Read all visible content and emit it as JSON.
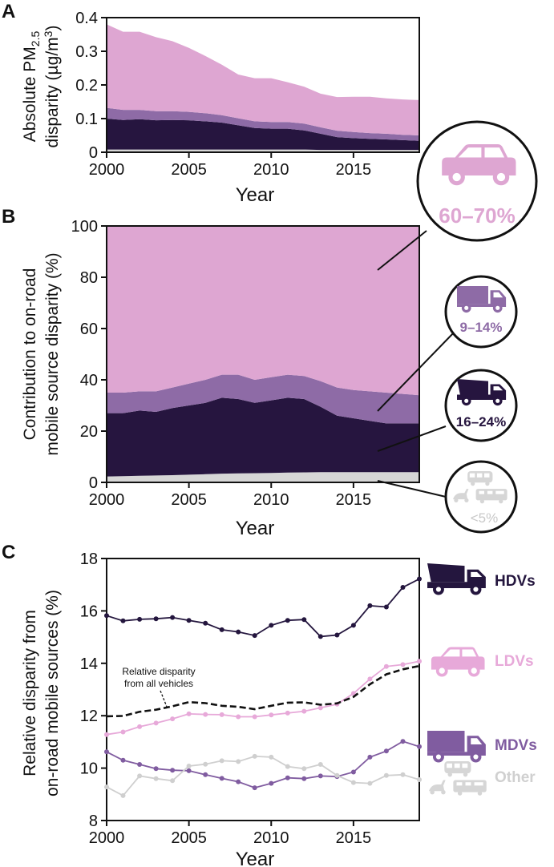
{
  "colors": {
    "ldv": "#dea6d2",
    "mdv": "#8e6ba6",
    "hdv": "#26153f",
    "other": "#d6d6d6",
    "ldv_line": "#e7a9d9",
    "mdv_line": "#805ca0",
    "hdv_line": "#24163e",
    "other_line": "#cfcfcf",
    "axis": "#111111"
  },
  "chart_data": [
    {
      "panel": "A",
      "type": "area",
      "stacked": true,
      "title": "",
      "xlabel": "Year",
      "ylabel_line1": "Absolute PM",
      "ylabel_sub": "2.5",
      "ylabel_line2": "disparity (µg/m",
      "ylabel_sup": "3",
      "ylabel_close": ")",
      "xlim": [
        2000,
        2019
      ],
      "ylim": [
        0,
        0.4
      ],
      "xticks": [
        2000,
        2005,
        2010,
        2015
      ],
      "xtick_labels": [
        "2000",
        "2005",
        "2010",
        "2015"
      ],
      "yticks": [
        0,
        0.1,
        0.2,
        0.3,
        0.4
      ],
      "ytick_labels": [
        "0",
        "0.1",
        "0.2",
        "0.3",
        "0.4"
      ],
      "x": [
        2000,
        2001,
        2002,
        2003,
        2004,
        2005,
        2006,
        2007,
        2008,
        2009,
        2010,
        2011,
        2012,
        2013,
        2014,
        2015,
        2016,
        2017,
        2018,
        2019
      ],
      "series": [
        {
          "name": "Other",
          "color_key": "other",
          "values": [
            0.008,
            0.008,
            0.008,
            0.008,
            0.008,
            0.008,
            0.008,
            0.008,
            0.008,
            0.008,
            0.008,
            0.008,
            0.008,
            0.007,
            0.007,
            0.007,
            0.007,
            0.007,
            0.007,
            0.007
          ]
        },
        {
          "name": "HDVs",
          "color_key": "hdv",
          "values": [
            0.092,
            0.088,
            0.09,
            0.087,
            0.088,
            0.087,
            0.084,
            0.08,
            0.072,
            0.064,
            0.062,
            0.062,
            0.057,
            0.048,
            0.038,
            0.035,
            0.033,
            0.031,
            0.029,
            0.027
          ]
        },
        {
          "name": "MDVs",
          "color_key": "mdv",
          "values": [
            0.032,
            0.03,
            0.028,
            0.027,
            0.026,
            0.025,
            0.024,
            0.022,
            0.021,
            0.02,
            0.02,
            0.02,
            0.02,
            0.019,
            0.019,
            0.018,
            0.017,
            0.017,
            0.016,
            0.016
          ]
        },
        {
          "name": "LDVs",
          "color_key": "ldv",
          "values": [
            0.248,
            0.232,
            0.232,
            0.22,
            0.208,
            0.19,
            0.17,
            0.15,
            0.13,
            0.128,
            0.13,
            0.118,
            0.11,
            0.1,
            0.1,
            0.105,
            0.108,
            0.105,
            0.105,
            0.105
          ]
        }
      ]
    },
    {
      "panel": "B",
      "type": "area",
      "stacked": true,
      "title": "",
      "xlabel": "Year",
      "ylabel_line1": "Contribution to on-road",
      "ylabel_line2": "mobile source disparity (%)",
      "xlim": [
        2000,
        2019
      ],
      "ylim": [
        0,
        100
      ],
      "xticks": [
        2000,
        2005,
        2010,
        2015
      ],
      "xtick_labels": [
        "2000",
        "2005",
        "2010",
        "2015"
      ],
      "yticks": [
        0,
        20,
        40,
        60,
        80,
        100
      ],
      "ytick_labels": [
        "0",
        "20",
        "40",
        "60",
        "80",
        "100"
      ],
      "x": [
        2000,
        2001,
        2002,
        2003,
        2004,
        2005,
        2006,
        2007,
        2008,
        2009,
        2010,
        2011,
        2012,
        2013,
        2014,
        2015,
        2016,
        2017,
        2018,
        2019
      ],
      "series": [
        {
          "name": "Other",
          "color_key": "other",
          "values": [
            2.3,
            2.4,
            2.6,
            2.7,
            2.8,
            3.0,
            3.2,
            3.4,
            3.5,
            3.6,
            3.7,
            3.8,
            3.9,
            4.0,
            4.0,
            4.0,
            4.0,
            4.0,
            4.0,
            4.0
          ]
        },
        {
          "name": "HDVs",
          "color_key": "hdv",
          "values": [
            24.7,
            24.6,
            25.4,
            24.8,
            26.2,
            27.0,
            27.8,
            29.6,
            29.0,
            27.4,
            28.3,
            29.2,
            28.6,
            25.5,
            22.0,
            21.0,
            20.0,
            19.0,
            19.0,
            19.0
          ]
        },
        {
          "name": "MDVs",
          "color_key": "mdv",
          "values": [
            8.0,
            8.0,
            7.5,
            8.0,
            8.0,
            8.5,
            9.0,
            9.0,
            9.5,
            9.0,
            9.0,
            9.0,
            9.0,
            10.0,
            11.0,
            11.0,
            11.5,
            12.0,
            11.5,
            11.0
          ]
        },
        {
          "name": "LDVs",
          "color_key": "ldv",
          "values": [
            65.0,
            65.0,
            64.5,
            64.5,
            63.0,
            61.5,
            60.0,
            58.0,
            58.0,
            60.0,
            59.0,
            58.0,
            58.5,
            60.5,
            63.0,
            64.0,
            64.5,
            65.0,
            65.5,
            66.0
          ]
        }
      ],
      "callouts": [
        {
          "key": "ldv",
          "label": "60–70%",
          "vehicle": "car"
        },
        {
          "key": "mdv",
          "label": "9–14%",
          "vehicle": "box truck"
        },
        {
          "key": "hdv",
          "label": "16–24%",
          "vehicle": "dump truck"
        },
        {
          "key": "other",
          "label": "<5%",
          "vehicle": "bus, scooter, RV"
        }
      ]
    },
    {
      "panel": "C",
      "type": "line",
      "title": "",
      "xlabel": "Year",
      "ylabel_line1": "Relative disparity from",
      "ylabel_line2": "on-road mobile sources (%)",
      "xlim": [
        2000,
        2019
      ],
      "ylim": [
        8,
        18
      ],
      "xticks": [
        2000,
        2005,
        2010,
        2015
      ],
      "xtick_labels": [
        "2000",
        "2005",
        "2010",
        "2015"
      ],
      "yticks": [
        8,
        10,
        12,
        14,
        16,
        18
      ],
      "ytick_labels": [
        "8",
        "10",
        "12",
        "14",
        "16",
        "18"
      ],
      "x": [
        2000,
        2001,
        2002,
        2003,
        2004,
        2005,
        2006,
        2007,
        2008,
        2009,
        2010,
        2011,
        2012,
        2013,
        2014,
        2015,
        2016,
        2017,
        2018,
        2019
      ],
      "series": [
        {
          "name": "HDVs",
          "color_key": "hdv_line",
          "markers": true,
          "values": [
            15.82,
            15.62,
            15.68,
            15.7,
            15.75,
            15.64,
            15.53,
            15.28,
            15.2,
            15.06,
            15.45,
            15.64,
            15.67,
            15.02,
            15.08,
            15.45,
            16.2,
            16.15,
            16.9,
            17.22
          ]
        },
        {
          "name": "LDVs",
          "color_key": "ldv_line",
          "markers": true,
          "values": [
            11.28,
            11.38,
            11.58,
            11.72,
            11.88,
            12.07,
            12.05,
            12.04,
            11.96,
            11.96,
            12.03,
            12.1,
            12.17,
            12.3,
            12.44,
            12.85,
            13.4,
            13.88,
            13.95,
            14.08
          ]
        },
        {
          "name": "MDVs",
          "color_key": "mdv_line",
          "markers": true,
          "values": [
            10.62,
            10.3,
            10.14,
            9.98,
            9.92,
            9.9,
            9.75,
            9.61,
            9.48,
            9.25,
            9.42,
            9.63,
            9.6,
            9.7,
            9.68,
            9.85,
            10.42,
            10.65,
            11.02,
            10.82
          ]
        },
        {
          "name": "Other",
          "color_key": "other_line",
          "markers": true,
          "values": [
            9.28,
            8.95,
            9.7,
            9.6,
            9.52,
            10.08,
            10.15,
            10.28,
            10.25,
            10.45,
            10.42,
            10.06,
            9.98,
            10.14,
            9.72,
            9.45,
            9.42,
            9.72,
            9.75,
            9.56
          ]
        },
        {
          "name": "Relative disparity from all vehicles",
          "color_key": "axis",
          "markers": false,
          "dashed": true,
          "values": [
            11.98,
            11.99,
            12.15,
            12.23,
            12.36,
            12.52,
            12.48,
            12.38,
            12.34,
            12.25,
            12.38,
            12.5,
            12.51,
            12.42,
            12.47,
            12.72,
            13.2,
            13.58,
            13.77,
            13.9
          ]
        }
      ],
      "annotation": {
        "line1": "Relative disparity",
        "line2": "from all vehicles"
      },
      "legend": [
        {
          "name": "HDVs",
          "color_key": "hdv_line",
          "vehicle": "dump truck"
        },
        {
          "name": "LDVs",
          "color_key": "ldv_line",
          "vehicle": "car"
        },
        {
          "name": "MDVs",
          "color_key": "mdv_line",
          "vehicle": "box truck"
        },
        {
          "name": "Other",
          "color_key": "other_line",
          "vehicle": "bus, scooter, RV"
        }
      ]
    }
  ],
  "panel_labels": [
    "A",
    "B",
    "C"
  ]
}
